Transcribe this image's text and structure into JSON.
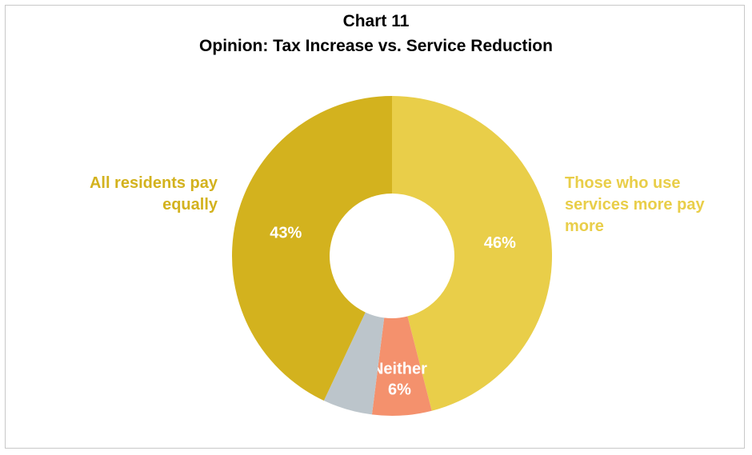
{
  "chart_data": {
    "type": "pie",
    "title": "Chart 11",
    "subtitle": "Opinion: Tax Increase vs. Service Reduction",
    "slices": [
      {
        "label": "Those who use services more pay more",
        "value": 46,
        "value_label": "46%",
        "color": "#E9CE49"
      },
      {
        "label": "Neither",
        "value": 6,
        "value_label": "6%",
        "color": "#F4916D"
      },
      {
        "label": "",
        "value": 5,
        "value_label": "",
        "color": "#BCC5CB"
      },
      {
        "label": "All residents pay equally",
        "value": 43,
        "value_label": "43%",
        "color": "#D3B21E"
      }
    ],
    "start_angle_deg": 0,
    "direction": "clockwise",
    "legend": "none"
  }
}
